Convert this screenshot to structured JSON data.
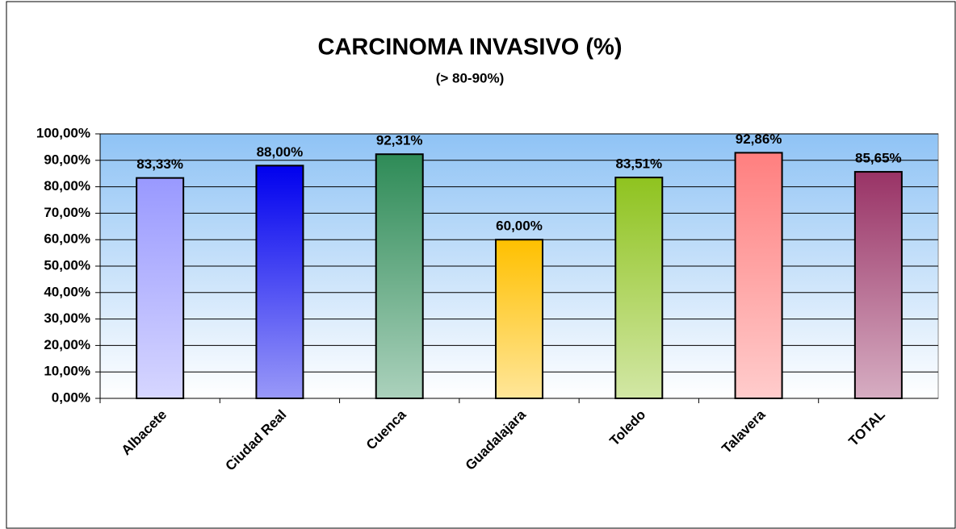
{
  "chart_data": {
    "type": "bar",
    "title": "CARCINOMA INVASIVO (%)",
    "subtitle": "(> 80-90%)",
    "categories": [
      "Albacete",
      "Ciudad Real",
      "Cuenca",
      "Guadalajara",
      "Toledo",
      "Talavera",
      "TOTAL"
    ],
    "values": [
      83.33,
      88.0,
      92.31,
      60.0,
      83.51,
      92.86,
      85.65
    ],
    "value_labels": [
      "83,33%",
      "88,00%",
      "92,31%",
      "60,00%",
      "83,51%",
      "92,86%",
      "85,65%"
    ],
    "colors": [
      "#9999ff",
      "#0000ee",
      "#2e8b57",
      "#ffc000",
      "#8fc31f",
      "#ff7f7f",
      "#993366"
    ],
    "ylim": [
      0,
      100
    ],
    "yticks": [
      {
        "value": 0,
        "label": "0,00%"
      },
      {
        "value": 10,
        "label": "10,00%"
      },
      {
        "value": 20,
        "label": "20,00%"
      },
      {
        "value": 30,
        "label": "30,00%"
      },
      {
        "value": 40,
        "label": "40,00%"
      },
      {
        "value": 50,
        "label": "50,00%"
      },
      {
        "value": 60,
        "label": "60,00%"
      },
      {
        "value": 70,
        "label": "70,00%"
      },
      {
        "value": 80,
        "label": "80,00%"
      },
      {
        "value": 90,
        "label": "90,00%"
      },
      {
        "value": 100,
        "label": "100,00%"
      }
    ],
    "grid": true
  }
}
